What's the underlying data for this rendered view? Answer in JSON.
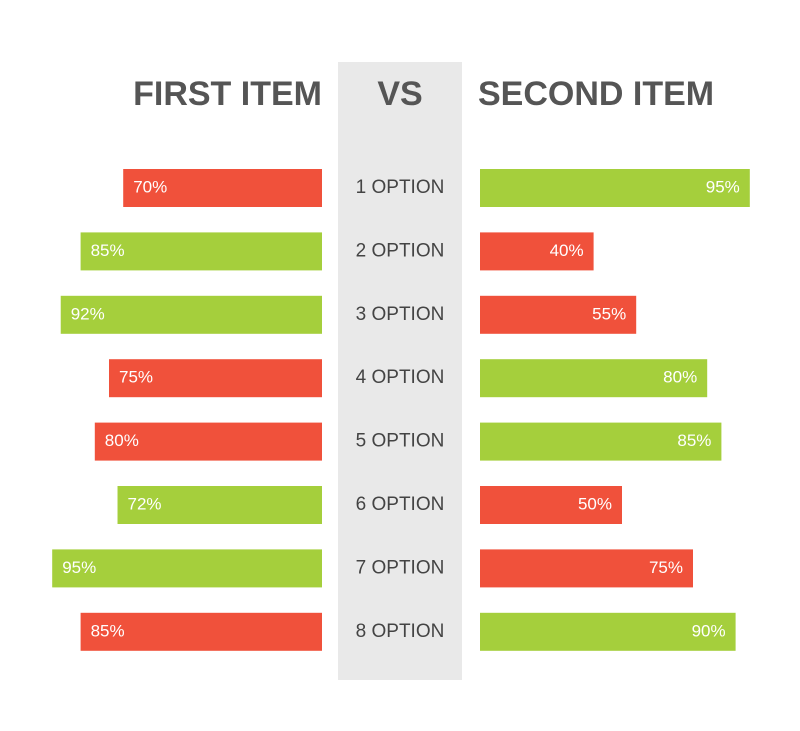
{
  "chart_data": {
    "type": "butterfly",
    "left_title": "FIRST ITEM",
    "center_title": "VS",
    "right_title": "SECOND ITEM",
    "categories": [
      "1 OPTION",
      "2 OPTION",
      "3 OPTION",
      "4 OPTION",
      "5 OPTION",
      "6 OPTION",
      "7 OPTION",
      "8 OPTION"
    ],
    "series": [
      {
        "side": "left",
        "values": [
          70,
          85,
          92,
          75,
          80,
          72,
          95,
          85
        ],
        "value_labels": [
          "70%",
          "85%",
          "92%",
          "75%",
          "80%",
          "72%",
          "95%",
          "85%"
        ],
        "colors": [
          "#f0513b",
          "#a5cf3c",
          "#a5cf3c",
          "#f0513b",
          "#f0513b",
          "#a5cf3c",
          "#a5cf3c",
          "#f0513b"
        ]
      },
      {
        "side": "right",
        "values": [
          95,
          40,
          55,
          80,
          85,
          50,
          75,
          90
        ],
        "value_labels": [
          "95%",
          "40%",
          "55%",
          "80%",
          "85%",
          "50%",
          "75%",
          "90%"
        ],
        "colors": [
          "#a5cf3c",
          "#f0513b",
          "#f0513b",
          "#a5cf3c",
          "#a5cf3c",
          "#f0513b",
          "#f0513b",
          "#a5cf3c"
        ]
      }
    ]
  }
}
